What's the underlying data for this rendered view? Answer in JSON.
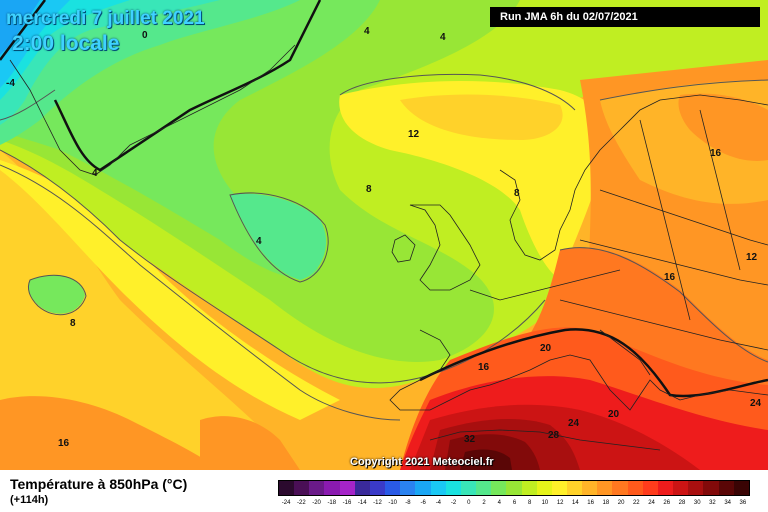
{
  "header": {
    "date": "mercredi 7 juillet 2021",
    "time": "2:00 locale",
    "run": "Run JMA 6h du 02/07/2021"
  },
  "footer": {
    "parameter": "Température à 850hPa (°C)",
    "forecast_hour": "(+114h)",
    "copyright": "Copyright 2021 Meteociel.fr"
  },
  "legend": {
    "ticks": [
      "-24",
      "-22",
      "-20",
      "-18",
      "-16",
      "-14",
      "-12",
      "-10",
      "-8",
      "-6",
      "-4",
      "-2",
      "0",
      "2",
      "4",
      "6",
      "8",
      "10",
      "12",
      "14",
      "16",
      "18",
      "20",
      "22",
      "24",
      "26",
      "28",
      "30",
      "32",
      "34",
      "36"
    ],
    "colors": [
      "#2b0a2e",
      "#4a0f56",
      "#6a1a88",
      "#8a1ab0",
      "#a524c8",
      "#3a2a9a",
      "#3a3ac8",
      "#2a5ae6",
      "#2a82f0",
      "#1aa6f4",
      "#1ac8f4",
      "#1ae2e0",
      "#39e6b8",
      "#55e88c",
      "#76e85c",
      "#98e636",
      "#c0ee22",
      "#e6f41a",
      "#fff02a",
      "#ffd22a",
      "#ffb428",
      "#ff9624",
      "#ff7820",
      "#ff5a1c",
      "#ff3c1c",
      "#ee1c1c",
      "#cc1414",
      "#a80f0f",
      "#820a0a",
      "#5a0606",
      "#3a0404"
    ]
  },
  "contour_labels": [
    {
      "text": "0"
    },
    {
      "text": "-4"
    },
    {
      "text": "4"
    },
    {
      "text": "4"
    },
    {
      "text": "4"
    },
    {
      "text": "4"
    },
    {
      "text": "8"
    },
    {
      "text": "8"
    },
    {
      "text": "8"
    },
    {
      "text": "12"
    },
    {
      "text": "12"
    },
    {
      "text": "16"
    },
    {
      "text": "16"
    },
    {
      "text": "16"
    },
    {
      "text": "16"
    },
    {
      "text": "20"
    },
    {
      "text": "20"
    },
    {
      "text": "24"
    },
    {
      "text": "24"
    },
    {
      "text": "28"
    },
    {
      "text": "32"
    }
  ]
}
